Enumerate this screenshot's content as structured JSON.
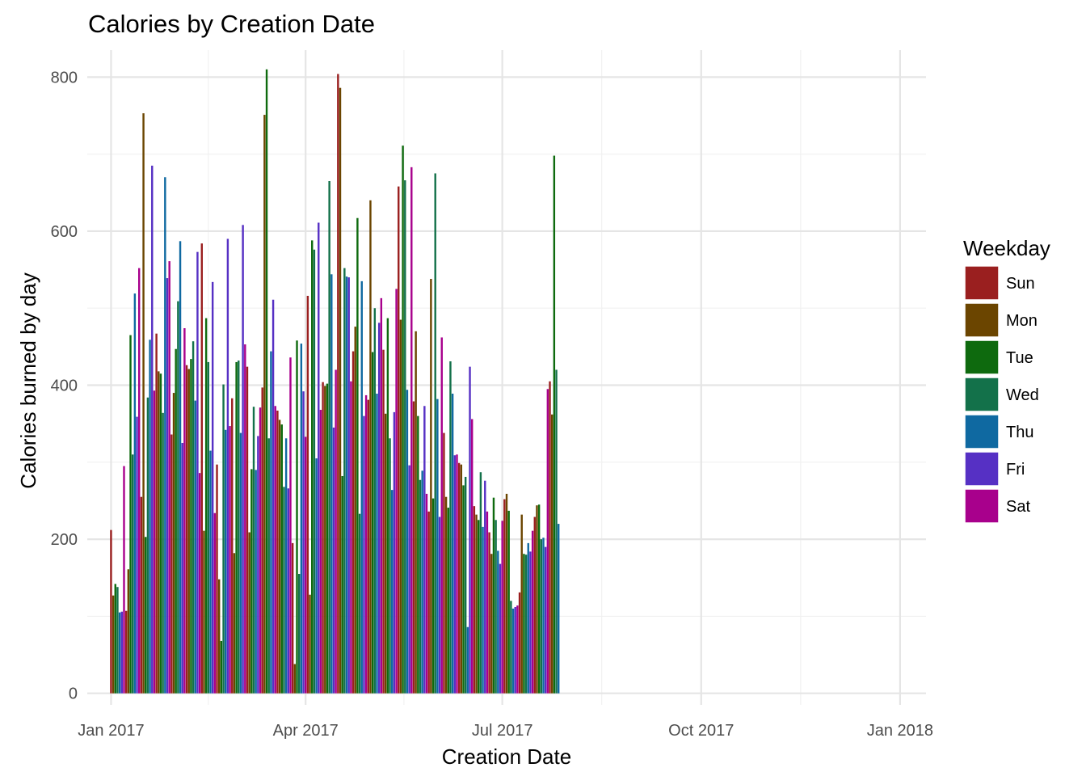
{
  "chart_data": {
    "type": "bar",
    "title": "Calories by Creation Date",
    "xlabel": "Creation Date",
    "ylabel": "Calories burned by day",
    "x_ticks": [
      "2017-01-01",
      "2017-04-01",
      "2017-07-01",
      "2017-10-01",
      "2018-01-01"
    ],
    "x_tick_labels": [
      "Jan 2017",
      "Apr 2017",
      "Jul 2017",
      "Oct 2017",
      "Jan 2018"
    ],
    "y_ticks": [
      0,
      200,
      400,
      600,
      800
    ],
    "xlim": [
      "2016-12-21",
      "2018-01-13"
    ],
    "ylim": [
      -15,
      835
    ],
    "grid": true,
    "legend": {
      "title": "Weekday",
      "position": "right",
      "entries": [
        {
          "label": "Sun",
          "color": "#9a1f1f"
        },
        {
          "label": "Mon",
          "color": "#6b4500"
        },
        {
          "label": "Tue",
          "color": "#0e6a0e"
        },
        {
          "label": "Wed",
          "color": "#13714a"
        },
        {
          "label": "Thu",
          "color": "#0f69a1"
        },
        {
          "label": "Fri",
          "color": "#5630c4"
        },
        {
          "label": "Sat",
          "color": "#a8008c"
        }
      ]
    },
    "segments": [
      {
        "start": "2017-01-01",
        "values": [
          212,
          127,
          142,
          138,
          105,
          106,
          295,
          107,
          161,
          465,
          310,
          519,
          359,
          552,
          255,
          753,
          203,
          384,
          459,
          685,
          393,
          467,
          418,
          415,
          364,
          670,
          539,
          561,
          336,
          390,
          447,
          509,
          587,
          325,
          474,
          426,
          421,
          434,
          457,
          380,
          573,
          286,
          584,
          211,
          487,
          430,
          315,
          534,
          234,
          297,
          148,
          68,
          401,
          342,
          590,
          347,
          383,
          182,
          430,
          432,
          338,
          608,
          453,
          424,
          209,
          291,
          372,
          290,
          334,
          371,
          397,
          751,
          810,
          331,
          444,
          511,
          373,
          367,
          355,
          349,
          268,
          331,
          266,
          436,
          195,
          38,
          458,
          155,
          454
        ]
      },
      {
        "start": "2017-03-31",
        "values": [
          392,
          333,
          516,
          128,
          588,
          576,
          305,
          611,
          368,
          404,
          399,
          402,
          665,
          544,
          345,
          420,
          804,
          786,
          282,
          552,
          541,
          540,
          405,
          444,
          476,
          617,
          233,
          535,
          360,
          387,
          381,
          640,
          443,
          500,
          389,
          481,
          513,
          446,
          363,
          487,
          331,
          264,
          365,
          525,
          658,
          485,
          711,
          666,
          394,
          296,
          683,
          379,
          470,
          360,
          277,
          289,
          373,
          259,
          236,
          538,
          253,
          675,
          382,
          229,
          462,
          338,
          255,
          241,
          431,
          389,
          309,
          310,
          299,
          297,
          270,
          281,
          86,
          424,
          356,
          243,
          232,
          225,
          287,
          216,
          276,
          236,
          209,
          181,
          254,
          225,
          185,
          168,
          224,
          252,
          259,
          237,
          120,
          110,
          112,
          114,
          131,
          232,
          181,
          180,
          195,
          184,
          211,
          229,
          244,
          245,
          200,
          202,
          190,
          395,
          405,
          362,
          698,
          420,
          220
        ]
      }
    ]
  }
}
